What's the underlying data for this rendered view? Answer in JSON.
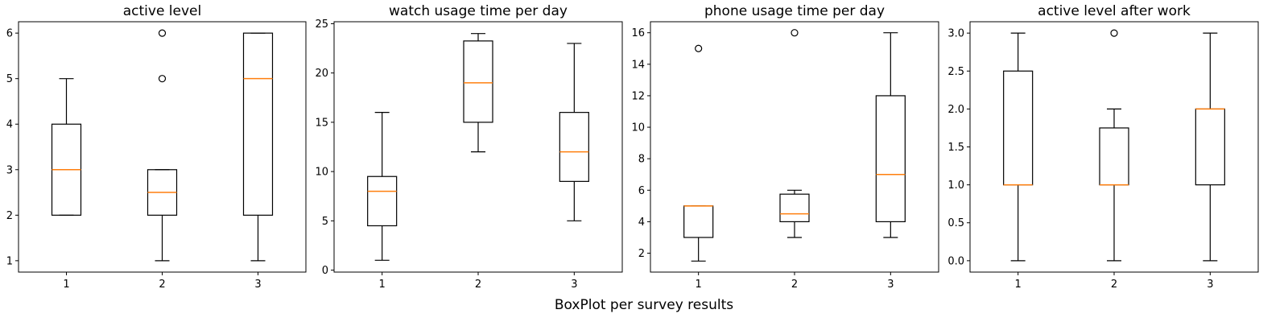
{
  "figure": {
    "suptitle": "BoxPlot per survey results"
  },
  "colors": {
    "box": "#000000",
    "median": "#ff7f0e",
    "background": "#ffffff"
  },
  "chart_data": [
    {
      "type": "box",
      "title": "active level",
      "categories": [
        "1",
        "2",
        "3"
      ],
      "ylim": [
        0.75,
        6.25
      ],
      "yticks": [
        1,
        2,
        3,
        4,
        5,
        6
      ],
      "ytick_labels": [
        "1",
        "2",
        "3",
        "4",
        "5",
        "6"
      ],
      "boxes": [
        {
          "category": "1",
          "whislo": 2,
          "q1": 2,
          "med": 3,
          "q3": 4,
          "whishi": 5,
          "fliers": []
        },
        {
          "category": "2",
          "whislo": 1,
          "q1": 2,
          "med": 2.5,
          "q3": 3,
          "whishi": 3,
          "fliers": [
            5,
            6
          ]
        },
        {
          "category": "3",
          "whislo": 1,
          "q1": 2,
          "med": 5,
          "q3": 6,
          "whishi": 6,
          "fliers": []
        }
      ]
    },
    {
      "type": "box",
      "title": "watch usage time per day",
      "categories": [
        "1",
        "2",
        "3"
      ],
      "ylim": [
        -0.2,
        25.2
      ],
      "yticks": [
        0,
        5,
        10,
        15,
        20,
        25
      ],
      "ytick_labels": [
        "0",
        "5",
        "10",
        "15",
        "20",
        "25"
      ],
      "boxes": [
        {
          "category": "1",
          "whislo": 1,
          "q1": 4.5,
          "med": 8,
          "q3": 9.5,
          "whishi": 16,
          "fliers": []
        },
        {
          "category": "2",
          "whislo": 12,
          "q1": 15,
          "med": 19,
          "q3": 23.25,
          "whishi": 24,
          "fliers": []
        },
        {
          "category": "3",
          "whislo": 5,
          "q1": 9,
          "med": 12,
          "q3": 16,
          "whishi": 23,
          "fliers": []
        }
      ]
    },
    {
      "type": "box",
      "title": "phone usage time per day",
      "categories": [
        "1",
        "2",
        "3"
      ],
      "ylim": [
        0.8,
        16.7
      ],
      "yticks": [
        2,
        4,
        6,
        8,
        10,
        12,
        14,
        16
      ],
      "ytick_labels": [
        "2",
        "4",
        "6",
        "8",
        "10",
        "12",
        "14",
        "16"
      ],
      "boxes": [
        {
          "category": "1",
          "whislo": 1.5,
          "q1": 3,
          "med": 5,
          "q3": 5,
          "whishi": 5,
          "fliers": [
            15
          ]
        },
        {
          "category": "2",
          "whislo": 3,
          "q1": 4,
          "med": 4.5,
          "q3": 5.75,
          "whishi": 6,
          "fliers": [
            16
          ]
        },
        {
          "category": "3",
          "whislo": 3,
          "q1": 4,
          "med": 7,
          "q3": 12,
          "whishi": 16,
          "fliers": []
        }
      ]
    },
    {
      "type": "box",
      "title": "active level after work",
      "categories": [
        "1",
        "2",
        "3"
      ],
      "ylim": [
        -0.15,
        3.15
      ],
      "yticks": [
        0,
        0.5,
        1,
        1.5,
        2,
        2.5,
        3
      ],
      "ytick_labels": [
        "0.0",
        "0.5",
        "1.0",
        "1.5",
        "2.0",
        "2.5",
        "3.0"
      ],
      "boxes": [
        {
          "category": "1",
          "whislo": 0,
          "q1": 1,
          "med": 1,
          "q3": 2.5,
          "whishi": 3,
          "fliers": []
        },
        {
          "category": "2",
          "whislo": 0,
          "q1": 1,
          "med": 1,
          "q3": 1.75,
          "whishi": 2,
          "fliers": [
            3
          ]
        },
        {
          "category": "3",
          "whislo": 0,
          "q1": 1,
          "med": 2,
          "q3": 2,
          "whishi": 3,
          "fliers": []
        }
      ]
    }
  ]
}
